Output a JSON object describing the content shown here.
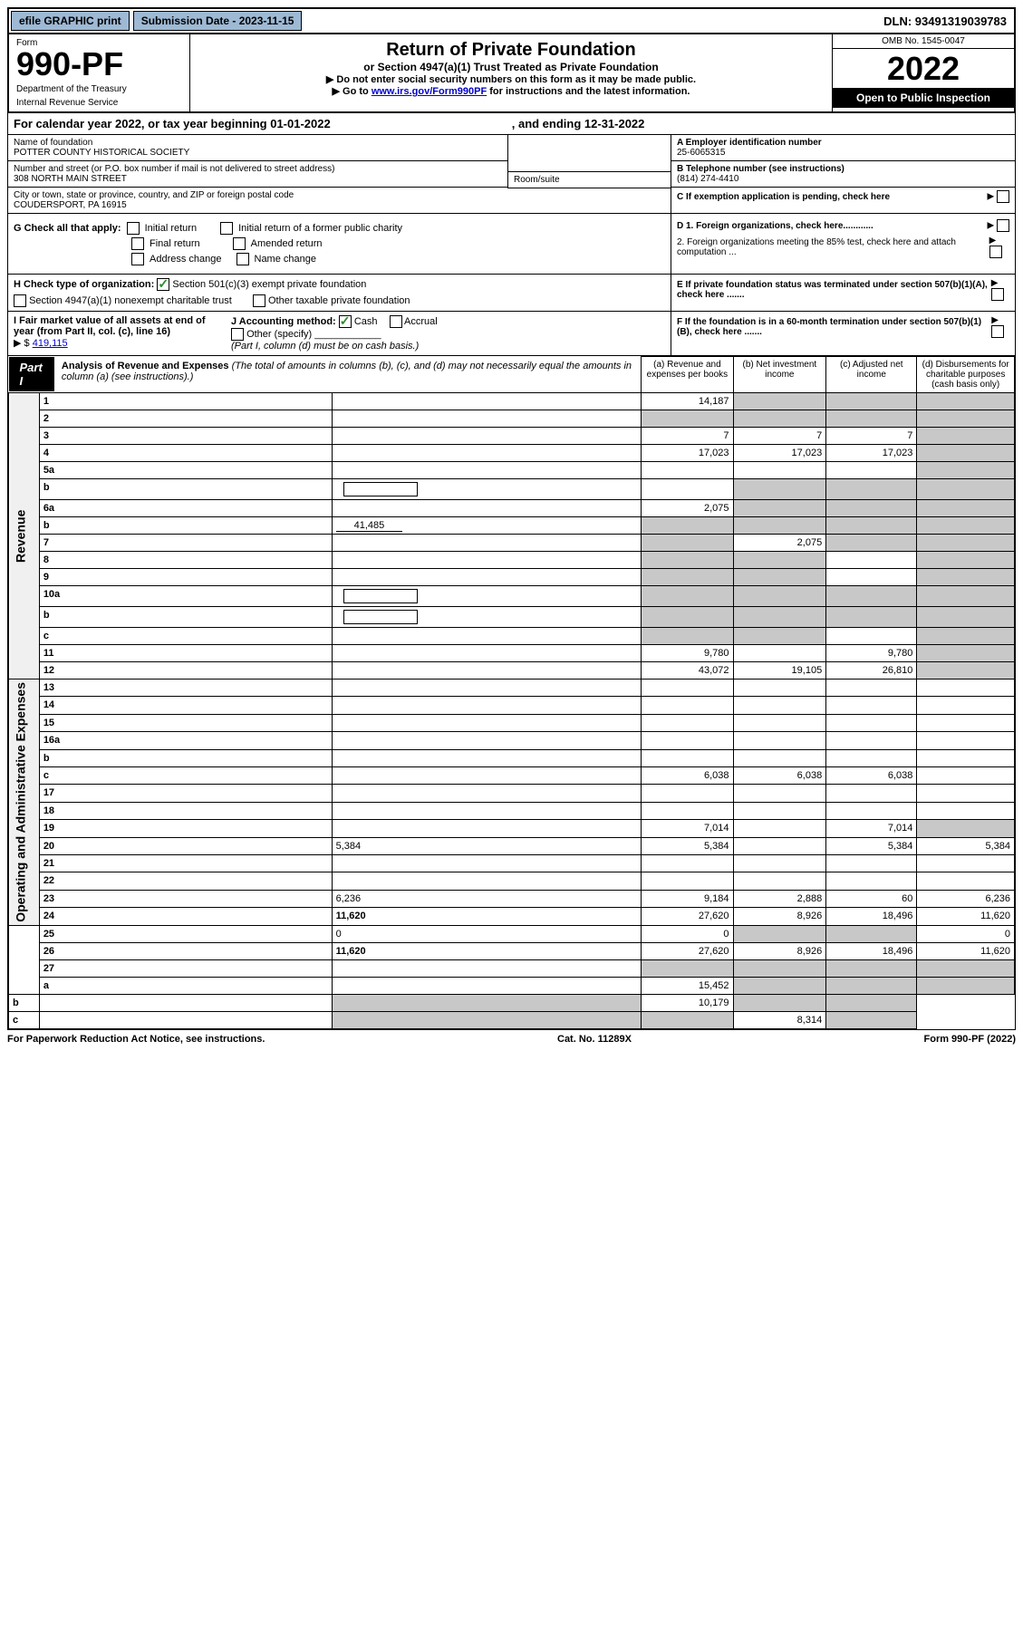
{
  "top_bar": {
    "efile": "efile GRAPHIC print",
    "submission_label": "Submission Date - 2023-11-15",
    "dln": "DLN: 93491319039783"
  },
  "header": {
    "form_label": "Form",
    "form_number": "990-PF",
    "dept1": "Department of the Treasury",
    "dept2": "Internal Revenue Service",
    "title": "Return of Private Foundation",
    "subtitle": "or Section 4947(a)(1) Trust Treated as Private Foundation",
    "inst1": "▶ Do not enter social security numbers on this form as it may be made public.",
    "inst2_prefix": "▶ Go to ",
    "inst2_link": "www.irs.gov/Form990PF",
    "inst2_suffix": " for instructions and the latest information.",
    "omb": "OMB No. 1545-0047",
    "year": "2022",
    "open": "Open to Public Inspection"
  },
  "calendar": {
    "text": "For calendar year 2022, or tax year beginning 01-01-2022",
    "ending": ", and ending 12-31-2022"
  },
  "entity": {
    "name_label": "Name of foundation",
    "name": "POTTER COUNTY HISTORICAL SOCIETY",
    "street_label": "Number and street (or P.O. box number if mail is not delivered to street address)",
    "street": "308 NORTH MAIN STREET",
    "room_label": "Room/suite",
    "city_label": "City or town, state or province, country, and ZIP or foreign postal code",
    "city": "COUDERSPORT, PA  16915",
    "ein_label": "A Employer identification number",
    "ein": "25-6065315",
    "phone_label": "B Telephone number (see instructions)",
    "phone": "(814) 274-4410",
    "c_label": "C If exemption application is pending, check here"
  },
  "checks": {
    "g_label": "G Check all that apply:",
    "initial": "Initial return",
    "initial_former": "Initial return of a former public charity",
    "final": "Final return",
    "amended": "Amended return",
    "address": "Address change",
    "name_change": "Name change",
    "h_label": "H Check type of organization:",
    "h_501c3": "Section 501(c)(3) exempt private foundation",
    "h_4947": "Section 4947(a)(1) nonexempt charitable trust",
    "h_other": "Other taxable private foundation",
    "i_label": "I Fair market value of all assets at end of year (from Part II, col. (c), line 16)",
    "i_value": "419,115",
    "j_label": "J Accounting method:",
    "j_cash": "Cash",
    "j_accrual": "Accrual",
    "j_other": "Other (specify)",
    "j_note": "(Part I, column (d) must be on cash basis.)",
    "d1": "D 1. Foreign organizations, check here............",
    "d2": "2. Foreign organizations meeting the 85% test, check here and attach computation ...",
    "e": "E  If private foundation status was terminated under section 507(b)(1)(A), check here .......",
    "f": "F  If the foundation is in a 60-month termination under section 507(b)(1)(B), check here .......",
    "arrow": "▶"
  },
  "part1": {
    "label": "Part I",
    "title": "Analysis of Revenue and Expenses",
    "note": " (The total of amounts in columns (b), (c), and (d) may not necessarily equal the amounts in column (a) (see instructions).)",
    "col_a": "(a)   Revenue and expenses per books",
    "col_b": "(b)   Net investment income",
    "col_c": "(c)   Adjusted net income",
    "col_d": "(d)   Disbursements for charitable purposes (cash basis only)"
  },
  "rows": [
    {
      "n": "1",
      "d": "",
      "a": "14,187",
      "b": "",
      "c": "",
      "shade_d": true,
      "shade_b": true,
      "shade_c": true
    },
    {
      "n": "2",
      "d": "",
      "a": "",
      "b": "",
      "c": "",
      "shade_all": true,
      "is_check": true
    },
    {
      "n": "3",
      "d": "",
      "a": "7",
      "b": "7",
      "c": "7",
      "shade_d": true
    },
    {
      "n": "4",
      "d": "",
      "a": "17,023",
      "b": "17,023",
      "c": "17,023",
      "shade_d": true
    },
    {
      "n": "5a",
      "d": "",
      "a": "",
      "b": "",
      "c": "",
      "shade_d": true
    },
    {
      "n": "b",
      "d": "",
      "a": "",
      "b": "",
      "c": "",
      "shade_bcd": true,
      "inline_box": true
    },
    {
      "n": "6a",
      "d": "",
      "a": "2,075",
      "b": "",
      "c": "",
      "shade_bcd": true
    },
    {
      "n": "b",
      "d": "",
      "a": "",
      "b": "",
      "c": "",
      "shade_abcd": true,
      "inline_val": "41,485"
    },
    {
      "n": "7",
      "d": "",
      "a": "",
      "b": "2,075",
      "c": "",
      "shade_a": true,
      "shade_cd": true
    },
    {
      "n": "8",
      "d": "",
      "a": "",
      "b": "",
      "c": "",
      "shade_ab": true,
      "shade_d": true
    },
    {
      "n": "9",
      "d": "",
      "a": "",
      "b": "",
      "c": "",
      "shade_ab": true,
      "shade_d": true
    },
    {
      "n": "10a",
      "d": "",
      "a": "",
      "b": "",
      "c": "",
      "shade_abcd": true,
      "inline_box": true
    },
    {
      "n": "b",
      "d": "",
      "a": "",
      "b": "",
      "c": "",
      "shade_abcd": true,
      "inline_box": true
    },
    {
      "n": "c",
      "d": "",
      "a": "",
      "b": "",
      "c": "",
      "shade_ab": true,
      "shade_d": true
    },
    {
      "n": "11",
      "d": "",
      "a": "9,780",
      "b": "",
      "c": "9,780",
      "shade_d": true
    },
    {
      "n": "12",
      "d": "",
      "a": "43,072",
      "b": "19,105",
      "c": "26,810",
      "shade_d": true,
      "bold": true
    },
    {
      "n": "13",
      "d": "",
      "a": "",
      "b": "",
      "c": ""
    },
    {
      "n": "14",
      "d": "",
      "a": "",
      "b": "",
      "c": ""
    },
    {
      "n": "15",
      "d": "",
      "a": "",
      "b": "",
      "c": ""
    },
    {
      "n": "16a",
      "d": "",
      "a": "",
      "b": "",
      "c": ""
    },
    {
      "n": "b",
      "d": "",
      "a": "",
      "b": "",
      "c": ""
    },
    {
      "n": "c",
      "d": "",
      "a": "6,038",
      "b": "6,038",
      "c": "6,038"
    },
    {
      "n": "17",
      "d": "",
      "a": "",
      "b": "",
      "c": ""
    },
    {
      "n": "18",
      "d": "",
      "a": "",
      "b": "",
      "c": ""
    },
    {
      "n": "19",
      "d": "",
      "a": "7,014",
      "b": "",
      "c": "7,014",
      "shade_d": true
    },
    {
      "n": "20",
      "d": "5,384",
      "a": "5,384",
      "b": "",
      "c": "5,384"
    },
    {
      "n": "21",
      "d": "",
      "a": "",
      "b": "",
      "c": ""
    },
    {
      "n": "22",
      "d": "",
      "a": "",
      "b": "",
      "c": ""
    },
    {
      "n": "23",
      "d": "6,236",
      "a": "9,184",
      "b": "2,888",
      "c": "60"
    },
    {
      "n": "24",
      "d": "11,620",
      "a": "27,620",
      "b": "8,926",
      "c": "18,496",
      "bold": true
    },
    {
      "n": "25",
      "d": "0",
      "a": "0",
      "b": "",
      "c": "",
      "shade_bc": true
    },
    {
      "n": "26",
      "d": "11,620",
      "a": "27,620",
      "b": "8,926",
      "c": "18,496",
      "bold": true
    },
    {
      "n": "27",
      "d": "",
      "a": "",
      "b": "",
      "c": "",
      "shade_abcd": true
    },
    {
      "n": "a",
      "d": "",
      "a": "15,452",
      "b": "",
      "c": "",
      "shade_bcd": true,
      "bold": true
    },
    {
      "n": "b",
      "d": "",
      "a": "",
      "b": "10,179",
      "c": "",
      "shade_a": true,
      "shade_cd": true,
      "bold": true
    },
    {
      "n": "c",
      "d": "",
      "a": "",
      "b": "",
      "c": "8,314",
      "shade_ab": true,
      "shade_d": true,
      "bold": true
    }
  ],
  "side_labels": {
    "revenue": "Revenue",
    "expenses": "Operating and Administrative Expenses"
  },
  "footer": {
    "left": "For Paperwork Reduction Act Notice, see instructions.",
    "mid": "Cat. No. 11289X",
    "right": "Form 990-PF (2022)"
  }
}
